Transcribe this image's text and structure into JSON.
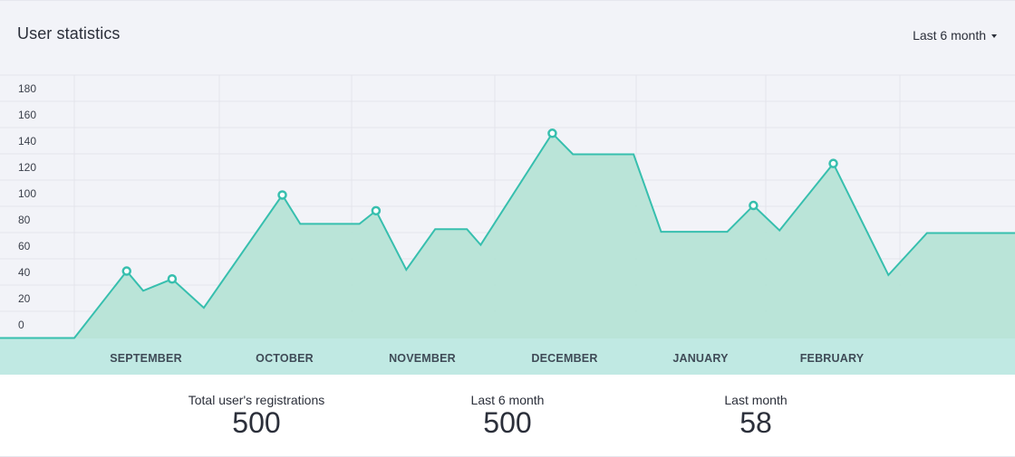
{
  "header": {
    "title": "User statistics",
    "range_label": "Last 6 month"
  },
  "stats": [
    {
      "label": "Total user's registrations",
      "value": "500"
    },
    {
      "label": "Last 6 month",
      "value": "500"
    },
    {
      "label": "Last month",
      "value": "58"
    }
  ],
  "colors": {
    "line": "#37bfae",
    "fill": "#b6e3d6",
    "band": "#c0e9e3",
    "grid": "#e4e5ec"
  },
  "chart_data": {
    "type": "area",
    "title": "User statistics",
    "xlabel": "",
    "ylabel": "",
    "ylim": [
      -10,
      190
    ],
    "yticks": [
      0,
      20,
      40,
      60,
      80,
      100,
      120,
      140,
      160,
      180
    ],
    "months": [
      "SEPTEMBER",
      "OCTOBER",
      "NOVEMBER",
      "DECEMBER",
      "JANUARY",
      "FEBRUARY"
    ],
    "grid": true,
    "legend": "none",
    "series": [
      {
        "values": [
          {
            "x": 0.0,
            "y": -10
          },
          {
            "x": 0.53,
            "y": -10
          },
          {
            "x": 0.91,
            "y": 41,
            "marker": true
          },
          {
            "x": 1.03,
            "y": 26
          },
          {
            "x": 1.24,
            "y": 35,
            "marker": true
          },
          {
            "x": 1.47,
            "y": 13
          },
          {
            "x": 2.04,
            "y": 99,
            "marker": true
          },
          {
            "x": 2.17,
            "y": 77
          },
          {
            "x": 2.6,
            "y": 77
          },
          {
            "x": 2.72,
            "y": 87,
            "marker": true
          },
          {
            "x": 2.94,
            "y": 42
          },
          {
            "x": 3.15,
            "y": 73
          },
          {
            "x": 3.38,
            "y": 73
          },
          {
            "x": 3.48,
            "y": 61
          },
          {
            "x": 4.0,
            "y": 146,
            "marker": true
          },
          {
            "x": 4.15,
            "y": 130
          },
          {
            "x": 4.59,
            "y": 130
          },
          {
            "x": 4.79,
            "y": 71
          },
          {
            "x": 5.27,
            "y": 71
          },
          {
            "x": 5.46,
            "y": 91,
            "marker": true
          },
          {
            "x": 5.65,
            "y": 72
          },
          {
            "x": 6.04,
            "y": 123,
            "marker": true
          },
          {
            "x": 6.44,
            "y": 38
          },
          {
            "x": 6.72,
            "y": 70
          },
          {
            "x": 7.19,
            "y": 70
          }
        ]
      }
    ]
  }
}
